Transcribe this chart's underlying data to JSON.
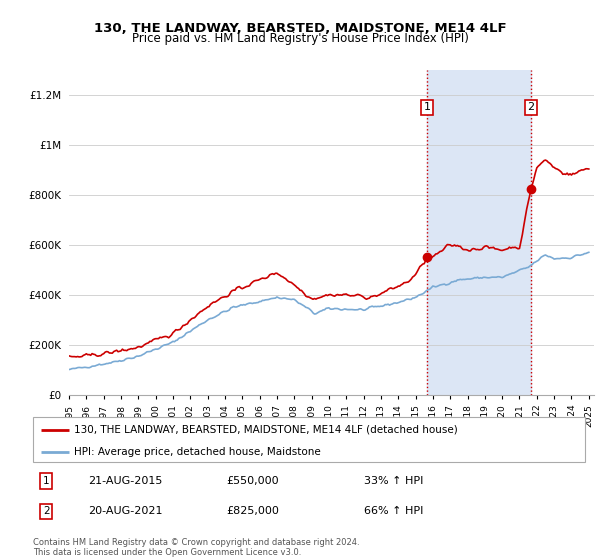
{
  "title_line1": "130, THE LANDWAY, BEARSTED, MAIDSTONE, ME14 4LF",
  "title_line2": "Price paid vs. HM Land Registry's House Price Index (HPI)",
  "property_color": "#cc0000",
  "hpi_color": "#7aaad4",
  "shaded_color": "#dce6f5",
  "annotation_box_color": "#cc0000",
  "legend_property": "130, THE LANDWAY, BEARSTED, MAIDSTONE, ME14 4LF (detached house)",
  "legend_hpi": "HPI: Average price, detached house, Maidstone",
  "sale1_date": "21-AUG-2015",
  "sale1_price": 550000,
  "sale1_pct": "33%",
  "sale2_date": "20-AUG-2021",
  "sale2_price": 825000,
  "sale2_pct": "66%",
  "footer": "Contains HM Land Registry data © Crown copyright and database right 2024.\nThis data is licensed under the Open Government Licence v3.0.",
  "ylim": [
    0,
    1300000
  ],
  "yticks": [
    0,
    200000,
    400000,
    600000,
    800000,
    1000000,
    1200000
  ],
  "ytick_labels": [
    "£0",
    "£200K",
    "£400K",
    "£600K",
    "£800K",
    "£1M",
    "£1.2M"
  ],
  "xstart": 1995,
  "xend": 2025
}
